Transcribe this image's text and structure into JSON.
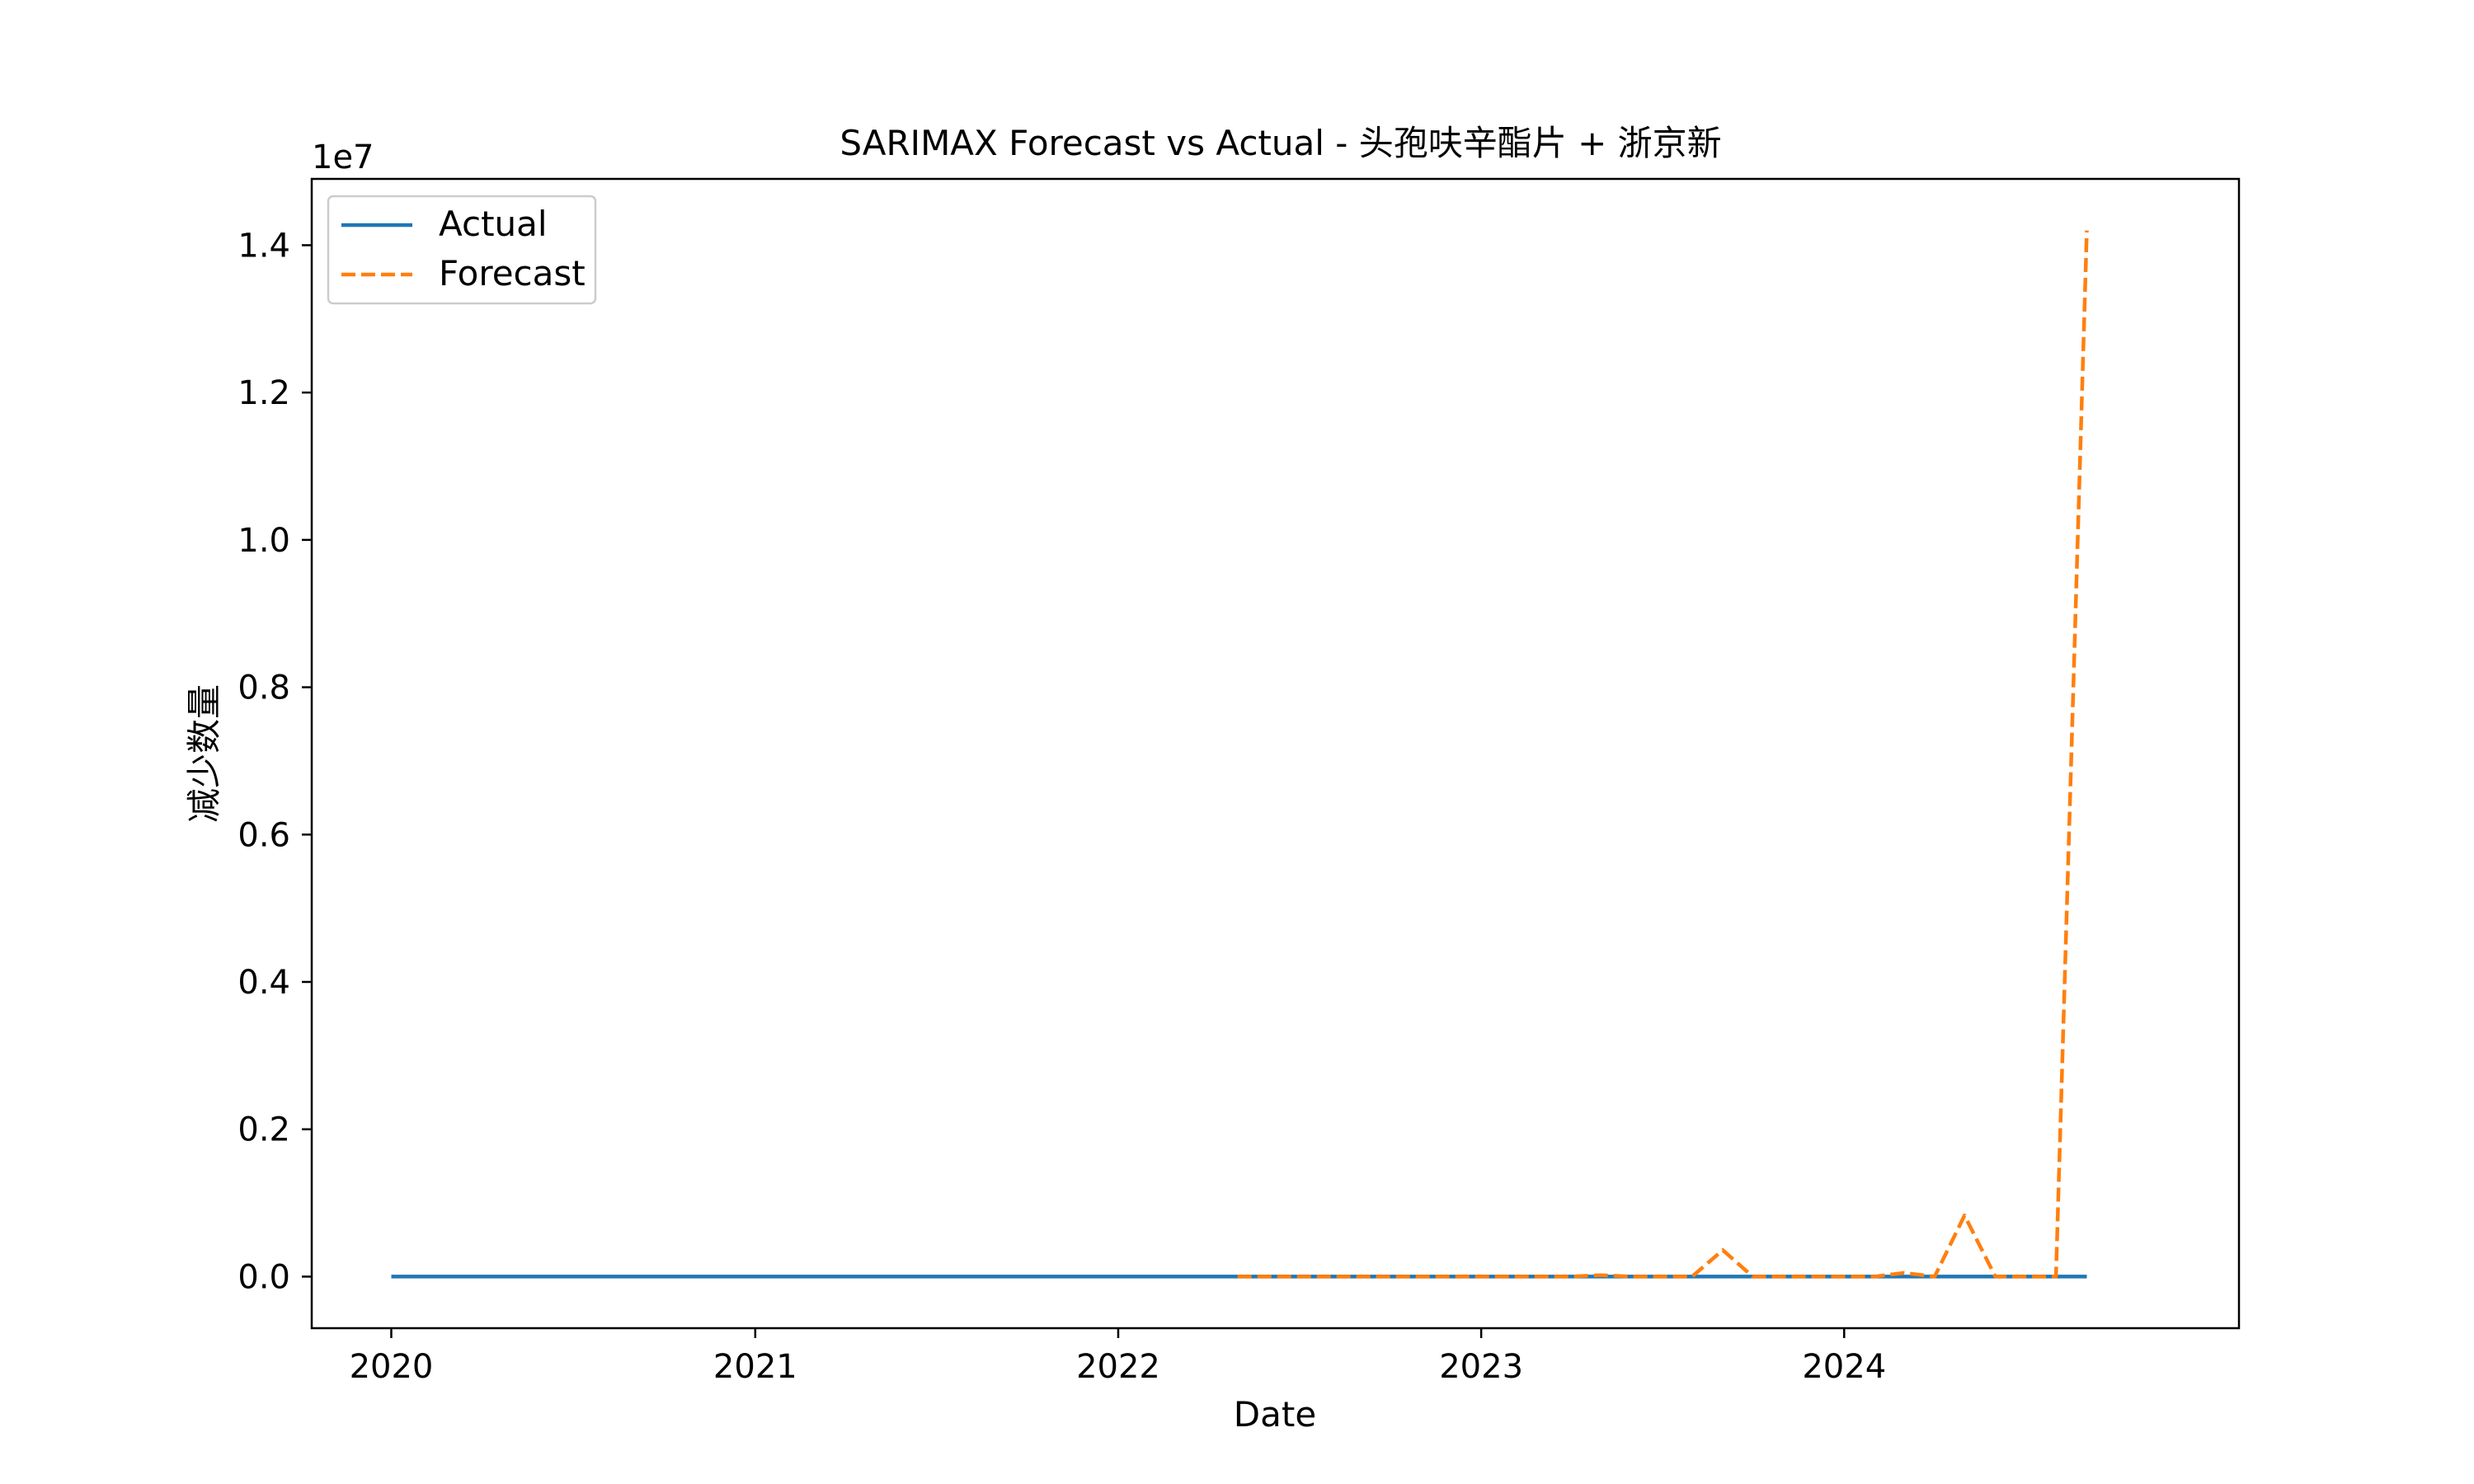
{
  "chart_data": {
    "type": "line",
    "title": "SARIMAX Forecast vs Actual - 头孢呋辛酯片 + 浙京新",
    "xlabel": "Date",
    "ylabel": "减少数量",
    "y_offset_label": "1e7",
    "xlim": [
      "2019-10-13",
      "2025-02-01"
    ],
    "ylim": [
      -0.07,
      1.49
    ],
    "y_scale_factor": 10000000,
    "x_ticks": [
      {
        "date": "2020-01-01",
        "label": "2020"
      },
      {
        "date": "2021-01-01",
        "label": "2021"
      },
      {
        "date": "2022-01-01",
        "label": "2022"
      },
      {
        "date": "2023-01-01",
        "label": "2023"
      },
      {
        "date": "2024-01-01",
        "label": "2024"
      }
    ],
    "y_ticks": [
      {
        "value": 0.0,
        "label": "0.0"
      },
      {
        "value": 0.2,
        "label": "0.2"
      },
      {
        "value": 0.4,
        "label": "0.4"
      },
      {
        "value": 0.6,
        "label": "0.6"
      },
      {
        "value": 0.8,
        "label": "0.8"
      },
      {
        "value": 1.0,
        "label": "1.0"
      },
      {
        "value": 1.2,
        "label": "1.2"
      },
      {
        "value": 1.4,
        "label": "1.4"
      }
    ],
    "grid": false,
    "legend": {
      "placement": "top-left"
    },
    "series": [
      {
        "name": "Actual",
        "color": "#1f77b4",
        "style": "solid",
        "points": [
          {
            "x": "2020-01-01",
            "y": 0.0
          },
          {
            "x": "2024-09-01",
            "y": 0.0
          }
        ]
      },
      {
        "name": "Forecast",
        "color": "#ff7f0e",
        "style": "dashed",
        "points": [
          {
            "x": "2022-05-01",
            "y": 0.0
          },
          {
            "x": "2022-06-01",
            "y": 0.0
          },
          {
            "x": "2022-07-01",
            "y": 0.0
          },
          {
            "x": "2022-08-01",
            "y": 0.0
          },
          {
            "x": "2022-09-01",
            "y": 0.0
          },
          {
            "x": "2022-10-01",
            "y": 0.0
          },
          {
            "x": "2022-11-01",
            "y": 0.0
          },
          {
            "x": "2022-12-01",
            "y": 0.0
          },
          {
            "x": "2023-01-01",
            "y": 0.0
          },
          {
            "x": "2023-02-01",
            "y": 0.0
          },
          {
            "x": "2023-03-01",
            "y": 0.0
          },
          {
            "x": "2023-04-01",
            "y": 0.0
          },
          {
            "x": "2023-05-01",
            "y": 0.002
          },
          {
            "x": "2023-06-01",
            "y": 0.0
          },
          {
            "x": "2023-07-01",
            "y": 0.0
          },
          {
            "x": "2023-08-01",
            "y": 0.0
          },
          {
            "x": "2023-09-01",
            "y": 0.036
          },
          {
            "x": "2023-10-01",
            "y": 0.0
          },
          {
            "x": "2023-11-01",
            "y": 0.0
          },
          {
            "x": "2023-12-01",
            "y": 0.0
          },
          {
            "x": "2024-01-01",
            "y": 0.0
          },
          {
            "x": "2024-02-01",
            "y": 0.0
          },
          {
            "x": "2024-03-01",
            "y": 0.005
          },
          {
            "x": "2024-04-01",
            "y": 0.0
          },
          {
            "x": "2024-05-01",
            "y": 0.083
          },
          {
            "x": "2024-06-01",
            "y": 0.0
          },
          {
            "x": "2024-07-01",
            "y": 0.0
          },
          {
            "x": "2024-08-01",
            "y": 0.0
          },
          {
            "x": "2024-09-01",
            "y": 1.42
          }
        ]
      }
    ]
  }
}
